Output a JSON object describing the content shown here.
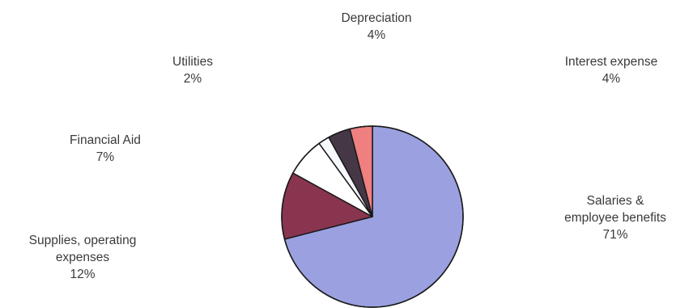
{
  "chart_data": {
    "type": "pie",
    "title": "",
    "slices": [
      {
        "name": "Salaries & employee benefits",
        "label_lines": [
          "Salaries &",
          "employee benefits"
        ],
        "value": 71,
        "value_label": "71%",
        "color": "#9aa0e0"
      },
      {
        "name": "Supplies, operating expenses",
        "label_lines": [
          "Supplies, operating",
          "expenses"
        ],
        "value": 12,
        "value_label": "12%",
        "color": "#8a3550"
      },
      {
        "name": "Financial Aid",
        "label_lines": [
          "Financial Aid"
        ],
        "value": 7,
        "value_label": "7%",
        "color": "#ffffff"
      },
      {
        "name": "Utilities",
        "label_lines": [
          "Utilities"
        ],
        "value": 2,
        "value_label": "2%",
        "color": "#f6f8fb"
      },
      {
        "name": "Depreciation",
        "label_lines": [
          "Depreciation"
        ],
        "value": 4,
        "value_label": "4%",
        "color": "#463746"
      },
      {
        "name": "Interest expense",
        "label_lines": [
          "Interest expense"
        ],
        "value": 4,
        "value_label": "4%",
        "color": "#f08080"
      }
    ]
  }
}
